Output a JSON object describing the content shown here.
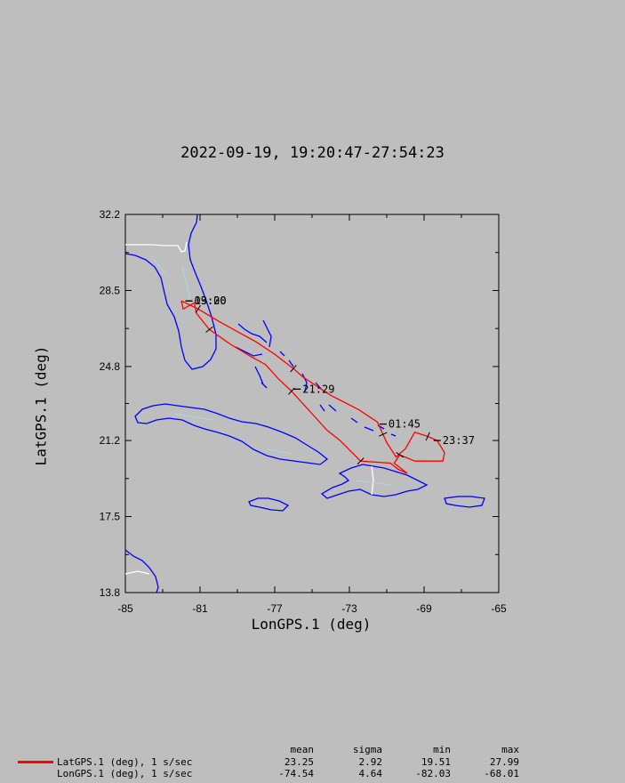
{
  "title": "2022-09-19, 19:20:47-27:54:23",
  "chart_data": {
    "type": "line",
    "title": "2022-09-19, 19:20:47-27:54:23",
    "xlabel": "LonGPS.1 (deg)",
    "ylabel": "LatGPS.1 (deg)",
    "xlim": [
      -85,
      -65
    ],
    "ylim": [
      13.8,
      32.2
    ],
    "xticks": [
      "-85",
      "-81",
      "-77",
      "-73",
      "-69",
      "-65"
    ],
    "yticks": [
      "32.2",
      "28.5",
      "24.8",
      "21.2",
      "17.5",
      "13.8"
    ],
    "grid": false,
    "series": [
      {
        "color": "#ff0000",
        "x": [
          -82.0,
          -82.0,
          -81.1,
          -80.0,
          -79.0,
          -78.0,
          -77.0,
          -76.0,
          -75.5,
          -74.0,
          -72.5,
          -71.5,
          -71.2,
          -71.0,
          -70.5,
          -70.0,
          -69.5,
          -68.8,
          -68.3,
          -67.9,
          -68.0,
          -69.5,
          -70.3,
          -70.6,
          -69.9,
          -70.4,
          -70.8,
          -72.4,
          -73.5,
          -74.2,
          -75.0,
          -75.6,
          -76.1,
          -76.8,
          -77.5,
          -78.3,
          -79.4,
          -80.5,
          -81.2,
          -81.3,
          -81.9,
          -82.0
        ],
        "y": [
          27.99,
          27.99,
          27.6,
          27.0,
          26.5,
          26.0,
          25.4,
          24.7,
          24.3,
          23.4,
          22.7,
          22.1,
          21.5,
          21.1,
          20.4,
          20.8,
          21.6,
          21.4,
          21.2,
          20.6,
          20.2,
          20.2,
          20.5,
          20.1,
          19.6,
          19.8,
          20.1,
          20.2,
          21.2,
          21.7,
          22.5,
          23.1,
          23.6,
          24.2,
          24.9,
          25.3,
          25.9,
          26.6,
          27.4,
          27.9,
          27.6,
          27.99
        ]
      }
    ],
    "annotations": [
      {
        "text": "19:20",
        "x": -81.5,
        "y": 27.99
      },
      {
        "text": "03:00",
        "x": -81.5,
        "y": 27.99
      },
      {
        "text": "21:29",
        "x": -75.7,
        "y": 23.7
      },
      {
        "text": "01:45",
        "x": -71.1,
        "y": 22.0
      },
      {
        "text": "23:37",
        "x": -68.2,
        "y": 21.2
      }
    ]
  },
  "stats": {
    "headers": {
      "mean": "mean",
      "sigma": "sigma",
      "min": "min",
      "max": "max"
    },
    "rows": [
      {
        "label": "LatGPS.1 (deg), 1 s/sec",
        "mean": "23.25",
        "sigma": "2.92",
        "min": "19.51",
        "max": "27.99",
        "color": "#ff0000"
      },
      {
        "label": "LonGPS.1 (deg), 1 s/sec",
        "mean": "-74.54",
        "sigma": "4.64",
        "min": "-82.03",
        "max": "-68.01"
      }
    ]
  },
  "map_colors": {
    "coast": "#0000ff",
    "border": "#ffffff",
    "rivers": "#add8e6"
  }
}
